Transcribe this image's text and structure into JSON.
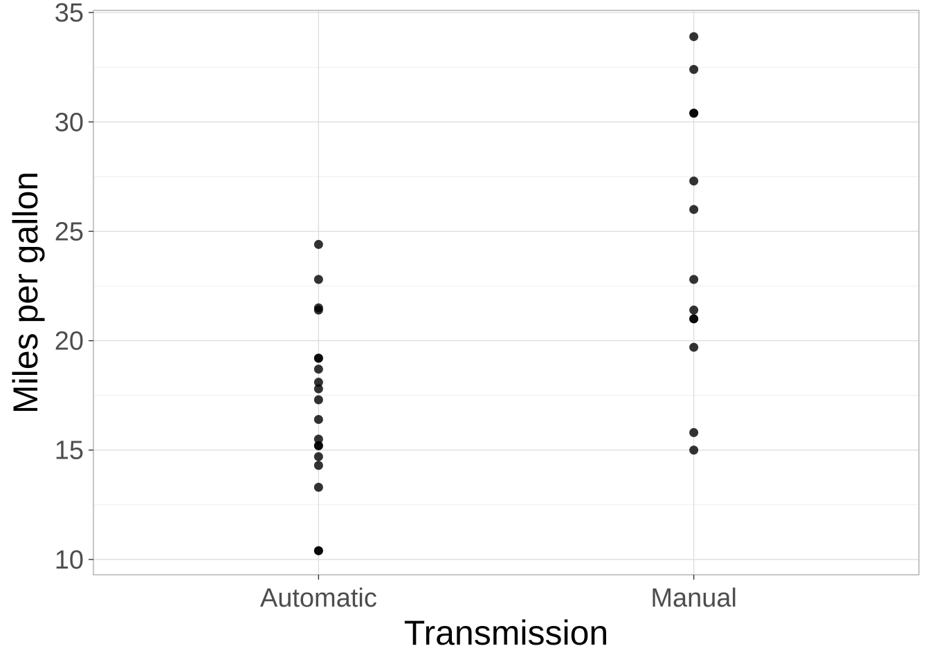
{
  "chart_data": {
    "type": "scatter",
    "title": "",
    "xlabel": "Transmission",
    "ylabel": "Miles per gallon",
    "categories": [
      "Automatic",
      "Manual"
    ],
    "ylim": [
      9.3,
      35.1
    ],
    "yticks": [
      "10",
      "15",
      "20",
      "25",
      "30",
      "35"
    ],
    "grid": true,
    "legend": "none",
    "series": [
      {
        "category": "Automatic",
        "values": [
          21.4,
          18.7,
          18.1,
          14.3,
          24.4,
          22.8,
          19.2,
          17.8,
          16.4,
          17.3,
          15.2,
          10.4,
          10.4,
          14.7,
          21.5,
          15.5,
          15.2,
          13.3,
          19.2
        ]
      },
      {
        "category": "Manual",
        "values": [
          21.0,
          21.0,
          22.8,
          32.4,
          30.4,
          33.9,
          27.3,
          26.0,
          30.4,
          15.8,
          19.7,
          15.0,
          21.4
        ]
      }
    ],
    "point_color": "#000000"
  }
}
